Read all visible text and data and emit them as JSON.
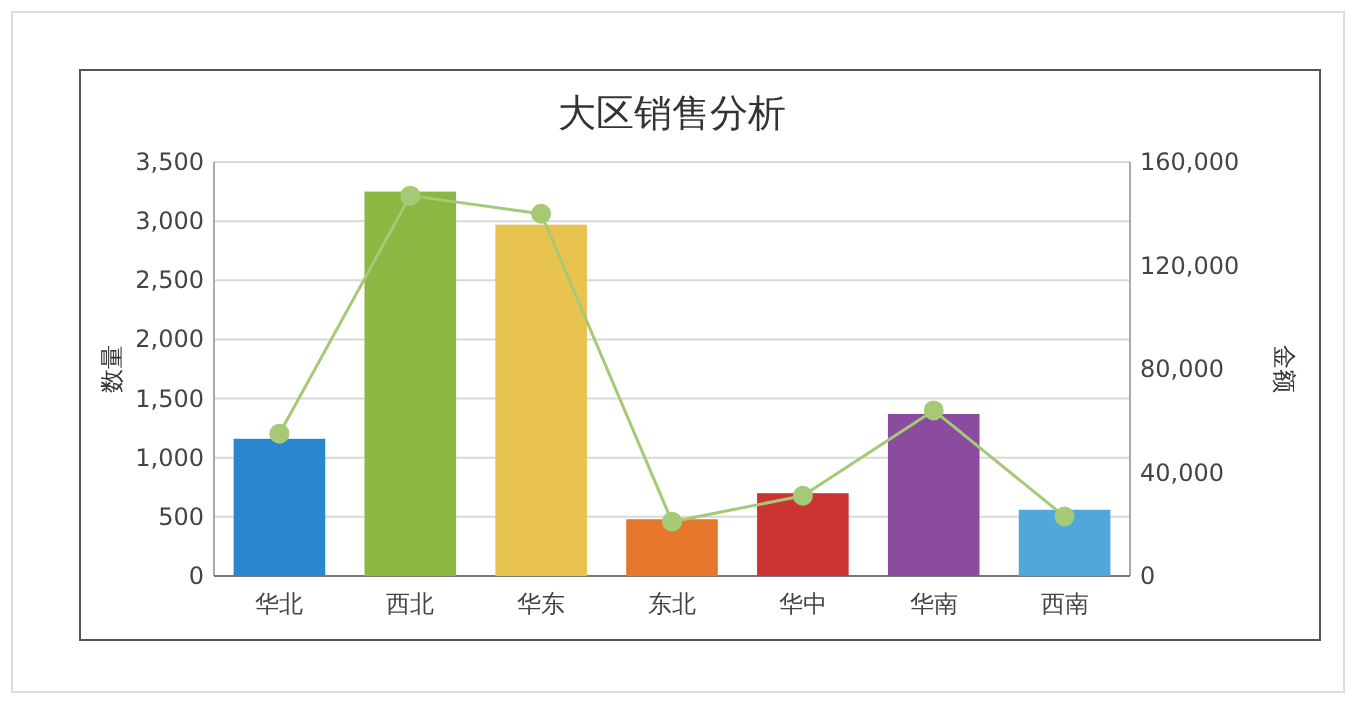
{
  "chart_data": {
    "type": "bar",
    "title": "大区销售分析",
    "ylabel": "数量",
    "y2label": "金额",
    "categories": [
      "华北",
      "西北",
      "华东",
      "东北",
      "华中",
      "华南",
      "西南"
    ],
    "series": [
      {
        "colors": [
          "#2a87cf",
          "#8cb743",
          "#e8c350",
          "#e5762c",
          "#cc3333",
          "#8b4b9f",
          "#4fa7dc"
        ],
        "values": [
          1160,
          3250,
          2970,
          480,
          700,
          1370,
          560
        ]
      },
      {
        "type": "line",
        "axis": "y2",
        "color": "#a6c976",
        "marker": "circle",
        "values": [
          55000,
          147000,
          140000,
          21000,
          31000,
          64000,
          23000
        ]
      }
    ],
    "ylim": [
      0,
      3500
    ],
    "yticks": [
      {
        "value": 0,
        "label": "0"
      },
      {
        "value": 500,
        "label": "500"
      },
      {
        "value": 1000,
        "label": "1,000"
      },
      {
        "value": 1500,
        "label": "1,500"
      },
      {
        "value": 2000,
        "label": "2,000"
      },
      {
        "value": 2500,
        "label": "2,500"
      },
      {
        "value": 3000,
        "label": "3,000"
      },
      {
        "value": 3500,
        "label": "3,500"
      }
    ],
    "y2lim": [
      0,
      160000
    ],
    "y2ticks": [
      {
        "value": 0,
        "label": "0"
      },
      {
        "value": 40000,
        "label": "40,000"
      },
      {
        "value": 80000,
        "label": "80,000"
      },
      {
        "value": 120000,
        "label": "120,000"
      },
      {
        "value": 160000,
        "label": "160,000"
      }
    ],
    "grid": "y"
  }
}
